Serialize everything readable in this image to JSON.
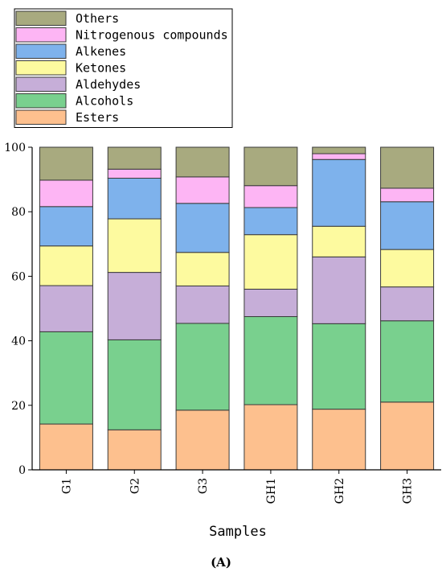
{
  "chart_data": {
    "type": "bar",
    "stacked": true,
    "categories": [
      "G1",
      "G2",
      "G3",
      "GH1",
      "GH2",
      "GH3"
    ],
    "series": [
      {
        "name": "Esters",
        "color": "#fdc08e",
        "values": [
          14.2,
          12.4,
          18.5,
          20.2,
          18.8,
          21.0
        ]
      },
      {
        "name": "Alcohols",
        "color": "#79d08e",
        "values": [
          28.6,
          27.9,
          26.9,
          27.3,
          26.5,
          25.2
        ]
      },
      {
        "name": "Aldehydes",
        "color": "#c6aed8",
        "values": [
          14.3,
          20.9,
          11.6,
          8.5,
          20.7,
          10.5
        ]
      },
      {
        "name": "Ketones",
        "color": "#fdfa9f",
        "values": [
          12.3,
          16.6,
          10.4,
          16.9,
          9.5,
          11.6
        ]
      },
      {
        "name": "Alkenes",
        "color": "#7eb2ec",
        "values": [
          12.2,
          12.6,
          15.2,
          8.4,
          20.7,
          14.8
        ]
      },
      {
        "name": "Nitrogenous compounds",
        "color": "#fdb5f4",
        "values": [
          8.2,
          2.8,
          8.2,
          6.8,
          1.8,
          4.2
        ]
      },
      {
        "name": "Others",
        "color": "#a8aa7f",
        "values": [
          10.2,
          6.8,
          9.2,
          11.9,
          2.0,
          12.7
        ]
      }
    ],
    "legend_order": [
      "Others",
      "Nitrogenous compounds",
      "Alkenes",
      "Ketones",
      "Aldehydes",
      "Alcohols",
      "Esters"
    ],
    "ylim": [
      0,
      100
    ],
    "yticks": [
      "0",
      "20",
      "40",
      "60",
      "80",
      "100"
    ],
    "xlabel": "Samples",
    "ylabel": "",
    "legend_position": "top-left",
    "grid": false
  },
  "panel_label": "(A)"
}
